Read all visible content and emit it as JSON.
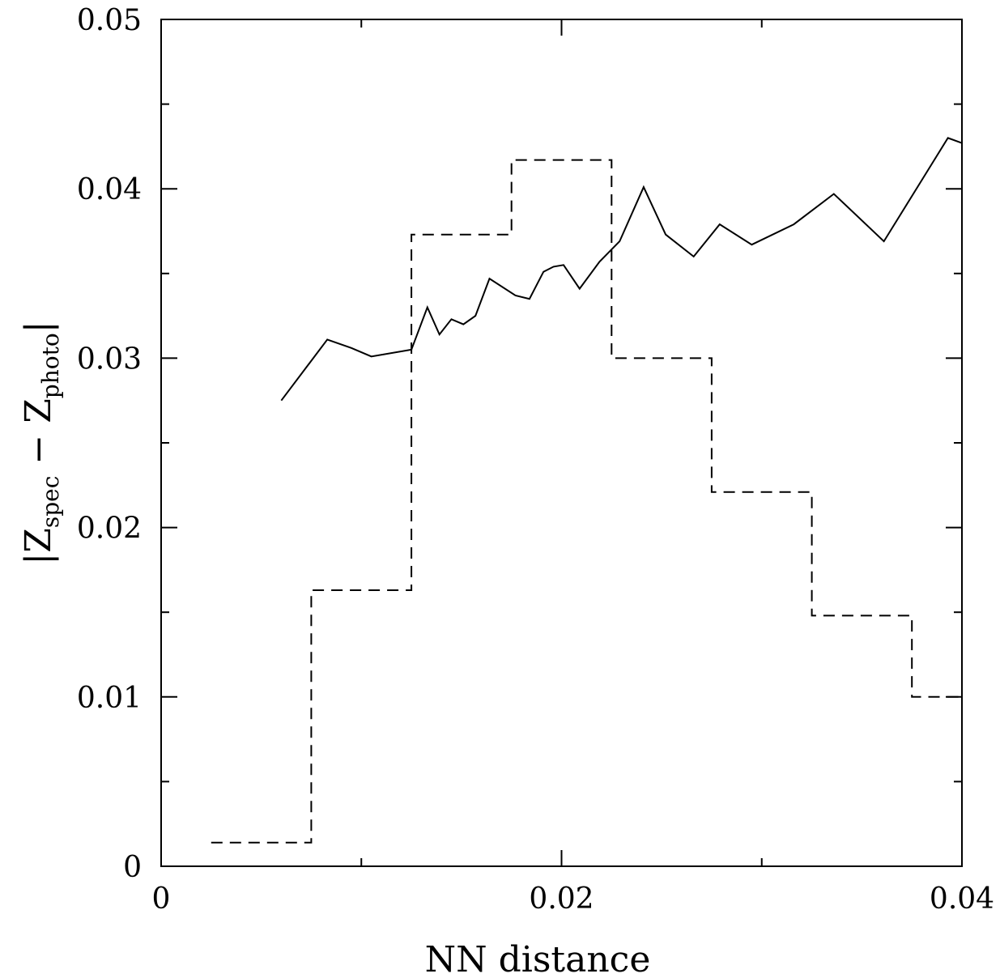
{
  "chart_data": {
    "type": "line",
    "xlim": [
      0,
      0.04
    ],
    "ylim": [
      0,
      0.05
    ],
    "xlabel": "NN distance",
    "ylabel": {
      "prefix": "|",
      "z1": "Z",
      "z1_sub": "spec",
      "minus": " − ",
      "z2": "Z",
      "z2_sub": "photo",
      "suffix": "|"
    },
    "x_ticks": [
      {
        "value": 0,
        "label": "0"
      },
      {
        "value": 0.02,
        "label": "0.02"
      },
      {
        "value": 0.04,
        "label": "0.04"
      }
    ],
    "x_minor_ticks": [
      0.01,
      0.03
    ],
    "y_ticks": [
      {
        "value": 0,
        "label": "0"
      },
      {
        "value": 0.01,
        "label": "0.01"
      },
      {
        "value": 0.02,
        "label": "0.02"
      },
      {
        "value": 0.03,
        "label": "0.03"
      },
      {
        "value": 0.04,
        "label": "0.04"
      },
      {
        "value": 0.05,
        "label": "0.05"
      }
    ],
    "y_minor_ticks": [
      0.005,
      0.015,
      0.025,
      0.035,
      0.045
    ],
    "grid": false,
    "series": [
      {
        "style": "solid",
        "x": [
          0.006,
          0.0083,
          0.0095,
          0.0105,
          0.0125,
          0.0133,
          0.0139,
          0.0145,
          0.0151,
          0.0157,
          0.0164,
          0.0177,
          0.0184,
          0.0191,
          0.0196,
          0.0201,
          0.0209,
          0.0219,
          0.0229,
          0.0241,
          0.0252,
          0.0266,
          0.0279,
          0.0295,
          0.0316,
          0.0336,
          0.0361,
          0.0393,
          0.04
        ],
        "y": [
          0.0275,
          0.0311,
          0.0306,
          0.0301,
          0.0305,
          0.033,
          0.0314,
          0.0323,
          0.032,
          0.0325,
          0.0347,
          0.0337,
          0.0335,
          0.0351,
          0.0354,
          0.0355,
          0.0341,
          0.0357,
          0.0369,
          0.0401,
          0.0373,
          0.036,
          0.0379,
          0.0367,
          0.0379,
          0.0397,
          0.0369,
          0.043,
          0.0427
        ]
      },
      {
        "style": "dashed-step",
        "bin_edges": [
          0.0025,
          0.0075,
          0.0125,
          0.0175,
          0.0225,
          0.0275,
          0.0325,
          0.0375,
          0.04
        ],
        "values": [
          0.0014,
          0.0163,
          0.0373,
          0.0417,
          0.03,
          0.0221,
          0.0148,
          0.01
        ]
      }
    ]
  }
}
